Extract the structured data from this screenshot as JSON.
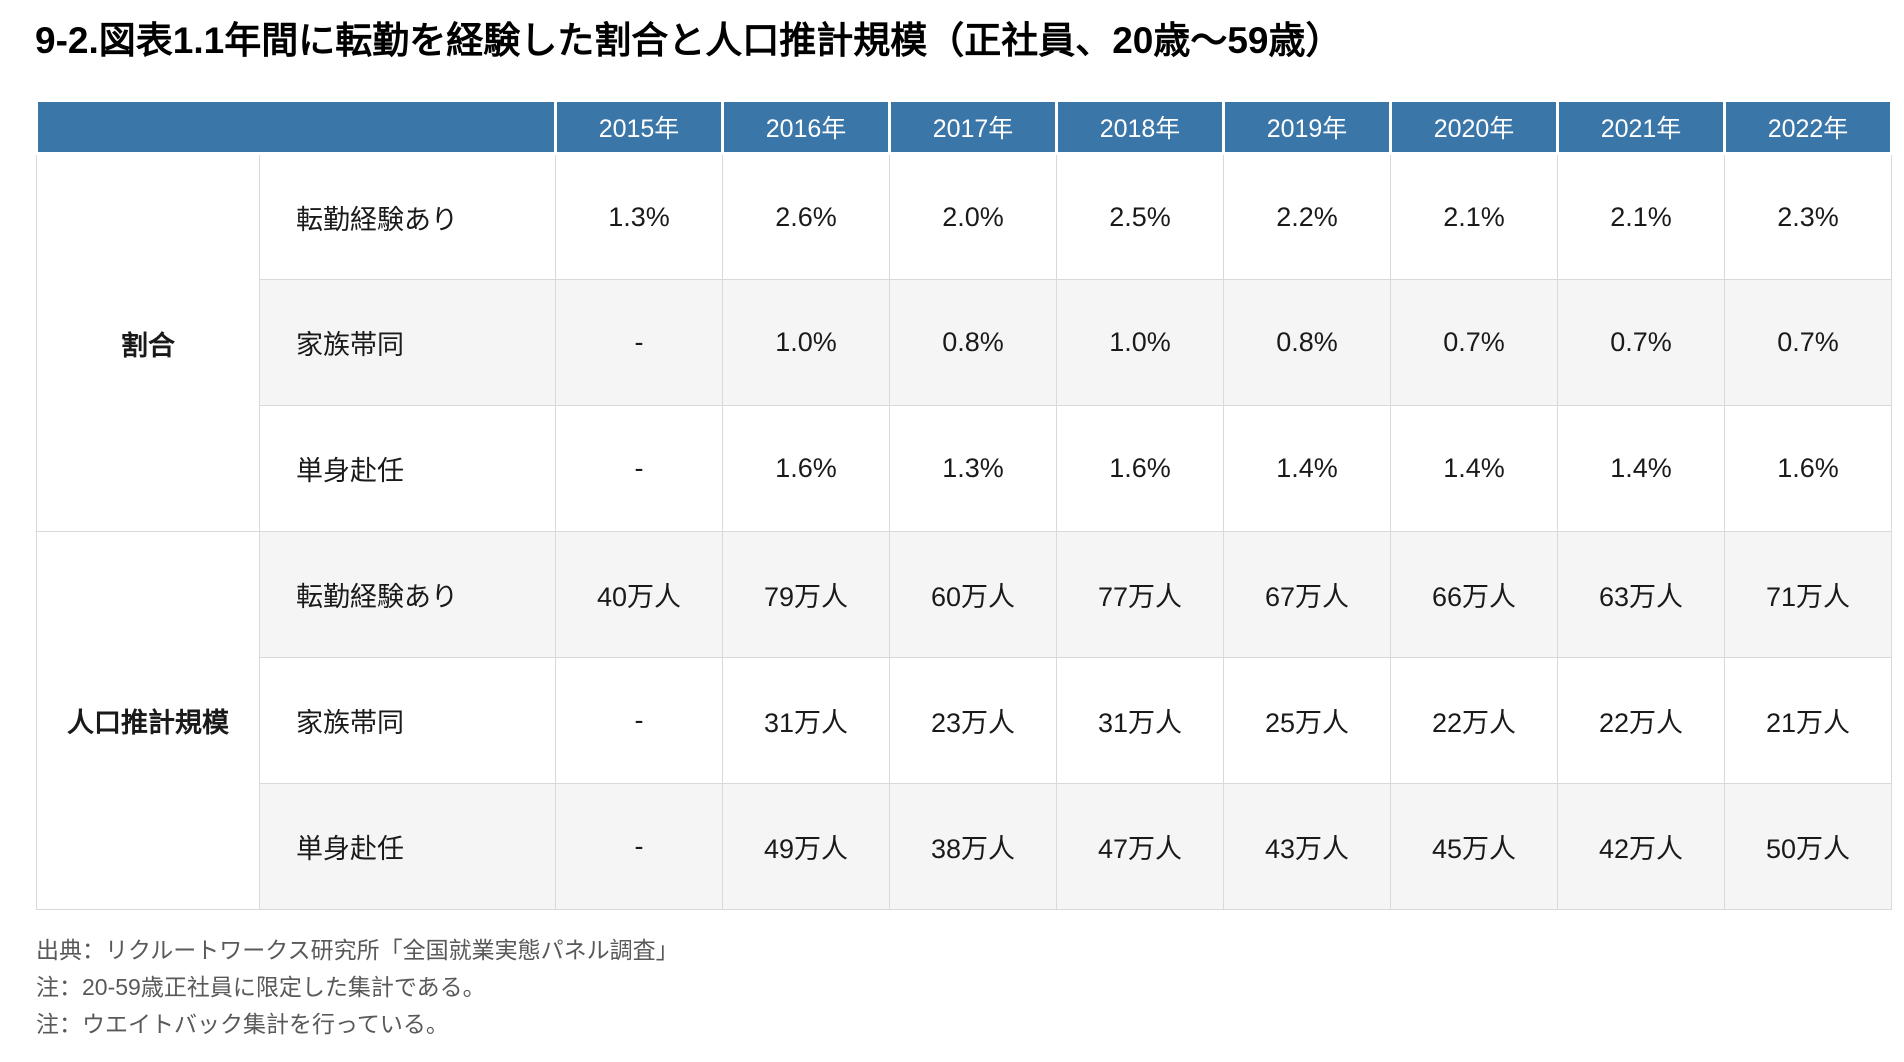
{
  "page": {
    "title": "9-2.図表1.1年間に転勤を経験した割合と人口推計規模（正社員、20歳～59歳）"
  },
  "chart_data": {
    "type": "table",
    "title": "9-2.図表1.1年間に転勤を経験した割合と人口推計規模（正社員、20歳～59歳）",
    "columns": [
      "2015年",
      "2016年",
      "2017年",
      "2018年",
      "2019年",
      "2020年",
      "2021年",
      "2022年"
    ],
    "row_groups": [
      {
        "group": "割合",
        "rows": [
          {
            "label": "転勤経験あり",
            "values": [
              "1.3%",
              "2.6%",
              "2.0%",
              "2.5%",
              "2.2%",
              "2.1%",
              "2.1%",
              "2.3%"
            ]
          },
          {
            "label": "家族帯同",
            "values": [
              "-",
              "1.0%",
              "0.8%",
              "1.0%",
              "0.8%",
              "0.7%",
              "0.7%",
              "0.7%"
            ]
          },
          {
            "label": "単身赴任",
            "values": [
              "-",
              "1.6%",
              "1.3%",
              "1.6%",
              "1.4%",
              "1.4%",
              "1.4%",
              "1.6%"
            ]
          }
        ]
      },
      {
        "group": "人口推計規模",
        "rows": [
          {
            "label": "転勤経験あり",
            "values": [
              "40万人",
              "79万人",
              "60万人",
              "77万人",
              "67万人",
              "66万人",
              "63万人",
              "71万人"
            ]
          },
          {
            "label": "家族帯同",
            "values": [
              "-",
              "31万人",
              "23万人",
              "31万人",
              "25万人",
              "22万人",
              "22万人",
              "21万人"
            ]
          },
          {
            "label": "単身赴任",
            "values": [
              "-",
              "49万人",
              "38万人",
              "47万人",
              "43万人",
              "45万人",
              "42万人",
              "50万人"
            ]
          }
        ]
      }
    ],
    "layout": {
      "striped_rows": "even",
      "legend_position": "none",
      "grid": true
    }
  },
  "notes": [
    "出典：リクルートワークス研究所「全国就業実態パネル調査」",
    "注：20-59歳正社員に限定した集計である。",
    "注：ウエイトバック集計を行っている。"
  ],
  "colors": {
    "header_bg": "#3b76a8",
    "header_text": "#ffffff",
    "stripe_bg": "#f5f5f5",
    "border": "#d9d9d9",
    "body_text": "#1a1a1a",
    "note_text": "#595959"
  }
}
